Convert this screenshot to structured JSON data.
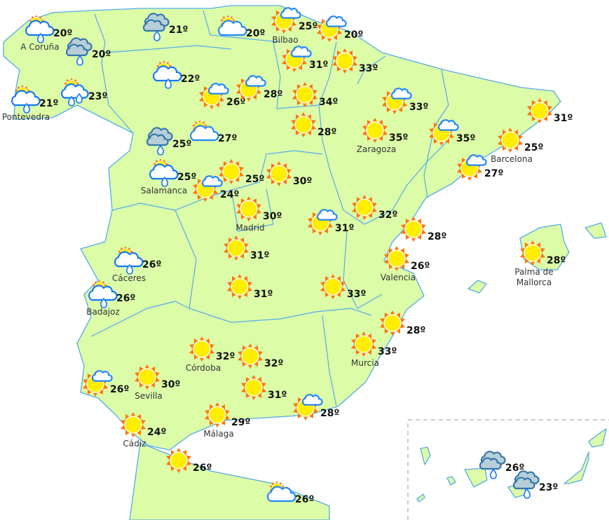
{
  "map": {
    "colors": {
      "land": "#dcfca8",
      "border": "#55aaee",
      "sun": "#ffee00",
      "sun_rays": "#ff7700",
      "rain_cloud": "#b8cfd8"
    },
    "stations": [
      {
        "city": "A Coruña",
        "temp": "20º",
        "condition": "sun-cloud-rain"
      },
      {
        "city": "",
        "temp": "20º",
        "condition": "rain-cloud"
      },
      {
        "city": "Pontevedra",
        "temp": "21º",
        "condition": "sun-cloud-rain"
      },
      {
        "city": "",
        "temp": "23º",
        "condition": "sun-cloud-showers"
      },
      {
        "city": "",
        "temp": "21º",
        "condition": "rain-cloud"
      },
      {
        "city": "",
        "temp": "20º",
        "condition": "sun-big-cloud"
      },
      {
        "city": "Bilbao",
        "temp": "25º",
        "condition": "sun-small-cloud"
      },
      {
        "city": "",
        "temp": "20º",
        "condition": "sun-small-cloud"
      },
      {
        "city": "",
        "temp": "31º",
        "condition": "sun-small-cloud"
      },
      {
        "city": "",
        "temp": "33º",
        "condition": "sun"
      },
      {
        "city": "",
        "temp": "22º",
        "condition": "sun-cloud-rain"
      },
      {
        "city": "",
        "temp": "26º",
        "condition": "sun-small-cloud"
      },
      {
        "city": "",
        "temp": "28º",
        "condition": "sun-small-cloud"
      },
      {
        "city": "",
        "temp": "34º",
        "condition": "sun"
      },
      {
        "city": "",
        "temp": "33º",
        "condition": "sun-small-cloud"
      },
      {
        "city": "",
        "temp": "31º",
        "condition": "sun"
      },
      {
        "city": "",
        "temp": "27º",
        "condition": "sun-big-cloud"
      },
      {
        "city": "",
        "temp": "25º",
        "condition": "rain-cloud"
      },
      {
        "city": "",
        "temp": "28º",
        "condition": "sun"
      },
      {
        "city": "Zaragoza",
        "temp": "35º",
        "condition": "sun"
      },
      {
        "city": "",
        "temp": "35º",
        "condition": "sun-small-cloud"
      },
      {
        "city": "Barcelona",
        "temp": "25º",
        "condition": "sun"
      },
      {
        "city": "Salamanca",
        "temp": "25º",
        "condition": "sun-cloud-rain"
      },
      {
        "city": "",
        "temp": "25º",
        "condition": "sun"
      },
      {
        "city": "",
        "temp": "30º",
        "condition": "sun"
      },
      {
        "city": "",
        "temp": "24º",
        "condition": "sun-small-cloud"
      },
      {
        "city": "",
        "temp": "27º",
        "condition": "sun-small-cloud"
      },
      {
        "city": "Madrid",
        "temp": "30º",
        "condition": "sun"
      },
      {
        "city": "",
        "temp": "32º",
        "condition": "sun"
      },
      {
        "city": "",
        "temp": "31º",
        "condition": "sun-small-cloud"
      },
      {
        "city": "",
        "temp": "28º",
        "condition": "sun"
      },
      {
        "city": "Cáceres",
        "temp": "26º",
        "condition": "sun-cloud-rain"
      },
      {
        "city": "",
        "temp": "31º",
        "condition": "sun"
      },
      {
        "city": "Valencia",
        "temp": "26º",
        "condition": "sun"
      },
      {
        "city": "Palma de Mallorca",
        "temp": "28º",
        "condition": "sun"
      },
      {
        "city": "Badajoz",
        "temp": "26º",
        "condition": "sun-cloud-rain"
      },
      {
        "city": "",
        "temp": "31º",
        "condition": "sun"
      },
      {
        "city": "",
        "temp": "33º",
        "condition": "sun"
      },
      {
        "city": "",
        "temp": "28º",
        "condition": "sun"
      },
      {
        "city": "Murcia",
        "temp": "33º",
        "condition": "sun"
      },
      {
        "city": "Córdoba",
        "temp": "32º",
        "condition": "sun"
      },
      {
        "city": "",
        "temp": "32º",
        "condition": "sun"
      },
      {
        "city": "",
        "temp": "26º",
        "condition": "sun-small-cloud"
      },
      {
        "city": "Sevilla",
        "temp": "30º",
        "condition": "sun"
      },
      {
        "city": "",
        "temp": "31º",
        "condition": "sun"
      },
      {
        "city": "",
        "temp": "28º",
        "condition": "sun-small-cloud"
      },
      {
        "city": "Málaga",
        "temp": "29º",
        "condition": "sun"
      },
      {
        "city": "Cádiz",
        "temp": "24º",
        "condition": "sun"
      },
      {
        "city": "",
        "temp": "26º",
        "condition": "sun"
      },
      {
        "city": "",
        "temp": "26º",
        "condition": "sun-big-cloud"
      },
      {
        "city": "",
        "temp": "26º",
        "condition": "rain-cloud"
      },
      {
        "city": "",
        "temp": "23º",
        "condition": "rain-cloud"
      }
    ]
  }
}
